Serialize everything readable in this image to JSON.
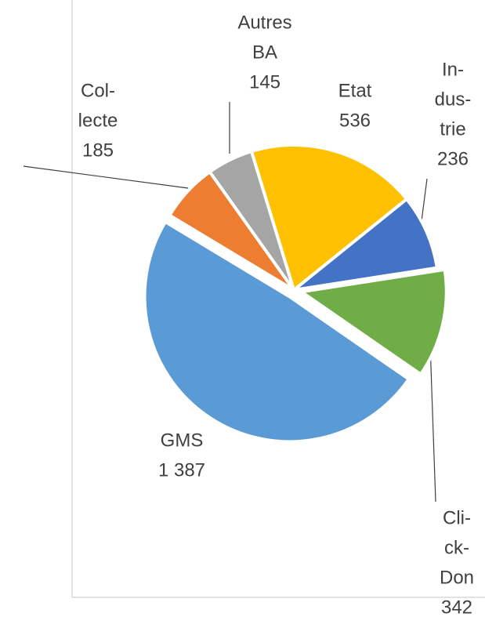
{
  "chart_data": {
    "type": "pie",
    "categories": [
      [
        "Etat"
      ],
      [
        "In-",
        "dus-",
        "trie"
      ],
      [
        "Cli-",
        "ck-",
        "Don"
      ],
      [
        "GMS"
      ],
      [
        "Col-",
        "lecte"
      ],
      [
        "Autres",
        "BA"
      ]
    ],
    "values": [
      536,
      236,
      342,
      1387,
      185,
      145
    ],
    "value_labels": [
      "536",
      "236",
      "342",
      "1 387",
      "185",
      "145"
    ],
    "colors": [
      "#ffc000",
      "#4472c4",
      "#70ad47",
      "#5b9bd5",
      "#ed7d31",
      "#a5a5a5"
    ],
    "exploded": [
      false,
      false,
      true,
      true,
      false,
      false
    ]
  }
}
